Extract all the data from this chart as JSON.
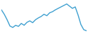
{
  "x": [
    0,
    1,
    2,
    3,
    4,
    5,
    6,
    7,
    8,
    9,
    10,
    11,
    12,
    13,
    14,
    15,
    16,
    17,
    18,
    19,
    20,
    21,
    22,
    23,
    24,
    25,
    26,
    27,
    28,
    29,
    30
  ],
  "y": [
    62,
    50,
    35,
    18,
    14,
    20,
    17,
    25,
    20,
    28,
    32,
    27,
    35,
    40,
    44,
    50,
    46,
    54,
    57,
    62,
    66,
    70,
    74,
    78,
    72,
    66,
    70,
    48,
    22,
    8,
    5
  ],
  "line_color": "#3fa0d0",
  "background_color": "#ffffff",
  "ylim": [
    0,
    85
  ],
  "xlim": [
    0,
    30
  ]
}
